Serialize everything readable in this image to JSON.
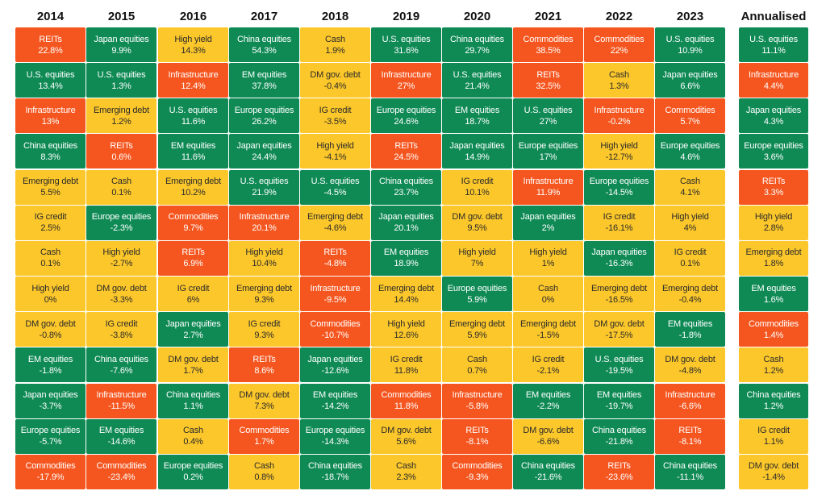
{
  "colors": {
    "green": "#0f8a55",
    "yellow": "#fcc72a",
    "red": "#f5561f"
  },
  "chart_data": {
    "type": "table",
    "title": "",
    "columns": [
      "2014",
      "2015",
      "2016",
      "2017",
      "2018",
      "2019",
      "2020",
      "2021",
      "2022",
      "2023",
      "Annualised"
    ],
    "cells": [
      [
        {
          "name": "REITs",
          "value": "22.8%",
          "color": "red"
        },
        {
          "name": "U.S. equities",
          "value": "13.4%",
          "color": "green"
        },
        {
          "name": "Infrastructure",
          "value": "13%",
          "color": "red"
        },
        {
          "name": "China equities",
          "value": "8.3%",
          "color": "green"
        },
        {
          "name": "Emerging debt",
          "value": "5.5%",
          "color": "yellow"
        },
        {
          "name": "IG credit",
          "value": "2.5%",
          "color": "yellow"
        },
        {
          "name": "Cash",
          "value": "0.1%",
          "color": "yellow"
        },
        {
          "name": "High yield",
          "value": "0%",
          "color": "yellow"
        },
        {
          "name": "DM gov. debt",
          "value": "-0.8%",
          "color": "yellow"
        },
        {
          "name": "EM equities",
          "value": "-1.8%",
          "color": "green"
        },
        {
          "name": "Japan equities",
          "value": "-3.7%",
          "color": "green"
        },
        {
          "name": "Europe equities",
          "value": "-5.7%",
          "color": "green"
        },
        {
          "name": "Commodities",
          "value": "-17.9%",
          "color": "red"
        }
      ],
      [
        {
          "name": "Japan equities",
          "value": "9.9%",
          "color": "green"
        },
        {
          "name": "U.S. equities",
          "value": "1.3%",
          "color": "green"
        },
        {
          "name": "Emerging debt",
          "value": "1.2%",
          "color": "yellow"
        },
        {
          "name": "REITs",
          "value": "0.6%",
          "color": "red"
        },
        {
          "name": "Cash",
          "value": "0.1%",
          "color": "yellow"
        },
        {
          "name": "Europe equities",
          "value": "-2.3%",
          "color": "green"
        },
        {
          "name": "High yield",
          "value": "-2.7%",
          "color": "yellow"
        },
        {
          "name": "DM gov. debt",
          "value": "-3.3%",
          "color": "yellow"
        },
        {
          "name": "IG credit",
          "value": "-3.8%",
          "color": "yellow"
        },
        {
          "name": "China equities",
          "value": "-7.6%",
          "color": "green"
        },
        {
          "name": "Infrastructure",
          "value": "-11.5%",
          "color": "red"
        },
        {
          "name": "EM equities",
          "value": "-14.6%",
          "color": "green"
        },
        {
          "name": "Commodities",
          "value": "-23.4%",
          "color": "red"
        }
      ],
      [
        {
          "name": "High yield",
          "value": "14.3%",
          "color": "yellow"
        },
        {
          "name": "Infrastructure",
          "value": "12.4%",
          "color": "red"
        },
        {
          "name": "U.S. equities",
          "value": "11.6%",
          "color": "green"
        },
        {
          "name": "EM equities",
          "value": "11.6%",
          "color": "green"
        },
        {
          "name": "Emerging debt",
          "value": "10.2%",
          "color": "yellow"
        },
        {
          "name": "Commodities",
          "value": "9.7%",
          "color": "red"
        },
        {
          "name": "REITs",
          "value": "6.9%",
          "color": "red"
        },
        {
          "name": "IG credit",
          "value": "6%",
          "color": "yellow"
        },
        {
          "name": "Japan equities",
          "value": "2.7%",
          "color": "green"
        },
        {
          "name": "DM gov. debt",
          "value": "1.7%",
          "color": "yellow"
        },
        {
          "name": "China equities",
          "value": "1.1%",
          "color": "green"
        },
        {
          "name": "Cash",
          "value": "0.4%",
          "color": "yellow"
        },
        {
          "name": "Europe equities",
          "value": "0.2%",
          "color": "green"
        }
      ],
      [
        {
          "name": "China equities",
          "value": "54.3%",
          "color": "green"
        },
        {
          "name": "EM equities",
          "value": "37.8%",
          "color": "green"
        },
        {
          "name": "Europe equities",
          "value": "26.2%",
          "color": "green"
        },
        {
          "name": "Japan equities",
          "value": "24.4%",
          "color": "green"
        },
        {
          "name": "U.S. equities",
          "value": "21.9%",
          "color": "green"
        },
        {
          "name": "Infrastructure",
          "value": "20.1%",
          "color": "red"
        },
        {
          "name": "High yield",
          "value": "10.4%",
          "color": "yellow"
        },
        {
          "name": "Emerging debt",
          "value": "9.3%",
          "color": "yellow"
        },
        {
          "name": "IG credit",
          "value": "9.3%",
          "color": "yellow"
        },
        {
          "name": "REITs",
          "value": "8.6%",
          "color": "red"
        },
        {
          "name": "DM gov. debt",
          "value": "7.3%",
          "color": "yellow"
        },
        {
          "name": "Commodities",
          "value": "1.7%",
          "color": "red"
        },
        {
          "name": "Cash",
          "value": "0.8%",
          "color": "yellow"
        }
      ],
      [
        {
          "name": "Cash",
          "value": "1.9%",
          "color": "yellow"
        },
        {
          "name": "DM gov. debt",
          "value": "-0.4%",
          "color": "yellow"
        },
        {
          "name": "IG credit",
          "value": "-3.5%",
          "color": "yellow"
        },
        {
          "name": "High yield",
          "value": "-4.1%",
          "color": "yellow"
        },
        {
          "name": "U.S. equities",
          "value": "-4.5%",
          "color": "green"
        },
        {
          "name": "Emerging debt",
          "value": "-4.6%",
          "color": "yellow"
        },
        {
          "name": "REITs",
          "value": "-4.8%",
          "color": "red"
        },
        {
          "name": "Infrastructure",
          "value": "-9.5%",
          "color": "red"
        },
        {
          "name": "Commodities",
          "value": "-10.7%",
          "color": "red"
        },
        {
          "name": "Japan equities",
          "value": "-12.6%",
          "color": "green"
        },
        {
          "name": "EM equities",
          "value": "-14.2%",
          "color": "green"
        },
        {
          "name": "Europe equities",
          "value": "-14.3%",
          "color": "green"
        },
        {
          "name": "China equities",
          "value": "-18.7%",
          "color": "green"
        }
      ],
      [
        {
          "name": "U.S. equities",
          "value": "31.6%",
          "color": "green"
        },
        {
          "name": "Infrastructure",
          "value": "27%",
          "color": "red"
        },
        {
          "name": "Europe equities",
          "value": "24.6%",
          "color": "green"
        },
        {
          "name": "REITs",
          "value": "24.5%",
          "color": "red"
        },
        {
          "name": "China equities",
          "value": "23.7%",
          "color": "green"
        },
        {
          "name": "Japan equities",
          "value": "20.1%",
          "color": "green"
        },
        {
          "name": "EM equities",
          "value": "18.9%",
          "color": "green"
        },
        {
          "name": "Emerging debt",
          "value": "14.4%",
          "color": "yellow"
        },
        {
          "name": "High yield",
          "value": "12.6%",
          "color": "yellow"
        },
        {
          "name": "IG credit",
          "value": "11.8%",
          "color": "yellow"
        },
        {
          "name": "Commodities",
          "value": "11.8%",
          "color": "red"
        },
        {
          "name": "DM gov. debt",
          "value": "5.6%",
          "color": "yellow"
        },
        {
          "name": "Cash",
          "value": "2.3%",
          "color": "yellow"
        }
      ],
      [
        {
          "name": "China equities",
          "value": "29.7%",
          "color": "green"
        },
        {
          "name": "U.S. equities",
          "value": "21.4%",
          "color": "green"
        },
        {
          "name": "EM equities",
          "value": "18.7%",
          "color": "green"
        },
        {
          "name": "Japan equities",
          "value": "14.9%",
          "color": "green"
        },
        {
          "name": "IG credit",
          "value": "10.1%",
          "color": "yellow"
        },
        {
          "name": "DM gov. debt",
          "value": "9.5%",
          "color": "yellow"
        },
        {
          "name": "High yield",
          "value": "7%",
          "color": "yellow"
        },
        {
          "name": "Europe equities",
          "value": "5.9%",
          "color": "green"
        },
        {
          "name": "Emerging debt",
          "value": "5.9%",
          "color": "yellow"
        },
        {
          "name": "Cash",
          "value": "0.7%",
          "color": "yellow"
        },
        {
          "name": "Infrastructure",
          "value": "-5.8%",
          "color": "red"
        },
        {
          "name": "REITs",
          "value": "-8.1%",
          "color": "red"
        },
        {
          "name": "Commodities",
          "value": "-9.3%",
          "color": "red"
        }
      ],
      [
        {
          "name": "Commodities",
          "value": "38.5%",
          "color": "red"
        },
        {
          "name": "REITs",
          "value": "32.5%",
          "color": "red"
        },
        {
          "name": "U.S. equities",
          "value": "27%",
          "color": "green"
        },
        {
          "name": "Europe equities",
          "value": "17%",
          "color": "green"
        },
        {
          "name": "Infrastructure",
          "value": "11.9%",
          "color": "red"
        },
        {
          "name": "Japan equities",
          "value": "2%",
          "color": "green"
        },
        {
          "name": "High yield",
          "value": "1%",
          "color": "yellow"
        },
        {
          "name": "Cash",
          "value": "0%",
          "color": "yellow"
        },
        {
          "name": "Emerging debt",
          "value": "-1.5%",
          "color": "yellow"
        },
        {
          "name": "IG credit",
          "value": "-2.1%",
          "color": "yellow"
        },
        {
          "name": "EM equities",
          "value": "-2.2%",
          "color": "green"
        },
        {
          "name": "DM gov. debt",
          "value": "-6.6%",
          "color": "yellow"
        },
        {
          "name": "China equities",
          "value": "-21.6%",
          "color": "green"
        }
      ],
      [
        {
          "name": "Commodities",
          "value": "22%",
          "color": "red"
        },
        {
          "name": "Cash",
          "value": "1.3%",
          "color": "yellow"
        },
        {
          "name": "Infrastructure",
          "value": "-0.2%",
          "color": "red"
        },
        {
          "name": "High yield",
          "value": "-12.7%",
          "color": "yellow"
        },
        {
          "name": "Europe equities",
          "value": "-14.5%",
          "color": "green"
        },
        {
          "name": "IG credit",
          "value": "-16.1%",
          "color": "yellow"
        },
        {
          "name": "Japan equities",
          "value": "-16.3%",
          "color": "green"
        },
        {
          "name": "Emerging debt",
          "value": "-16.5%",
          "color": "yellow"
        },
        {
          "name": "DM gov. debt",
          "value": "-17.5%",
          "color": "yellow"
        },
        {
          "name": "U.S. equities",
          "value": "-19.5%",
          "color": "green"
        },
        {
          "name": "EM equities",
          "value": "-19.7%",
          "color": "green"
        },
        {
          "name": "China equities",
          "value": "-21.8%",
          "color": "green"
        },
        {
          "name": "REITs",
          "value": "-23.6%",
          "color": "red"
        }
      ],
      [
        {
          "name": "U.S. equities",
          "value": "10.9%",
          "color": "green"
        },
        {
          "name": "Japan equities",
          "value": "6.6%",
          "color": "green"
        },
        {
          "name": "Commodities",
          "value": "5.7%",
          "color": "red"
        },
        {
          "name": "Europe equities",
          "value": "4.6%",
          "color": "green"
        },
        {
          "name": "Cash",
          "value": "4.1%",
          "color": "yellow"
        },
        {
          "name": "High yield",
          "value": "4%",
          "color": "yellow"
        },
        {
          "name": "IG credit",
          "value": "0.1%",
          "color": "yellow"
        },
        {
          "name": "Emerging debt",
          "value": "-0.4%",
          "color": "yellow"
        },
        {
          "name": "EM equities",
          "value": "-1.8%",
          "color": "green"
        },
        {
          "name": "DM gov. debt",
          "value": "-4.8%",
          "color": "yellow"
        },
        {
          "name": "Infrastructure",
          "value": "-6.6%",
          "color": "red"
        },
        {
          "name": "REITs",
          "value": "-8.1%",
          "color": "red"
        },
        {
          "name": "China equities",
          "value": "-11.1%",
          "color": "green"
        }
      ],
      [
        {
          "name": "U.S. equities",
          "value": "11.1%",
          "color": "green"
        },
        {
          "name": "Infrastructure",
          "value": "4.4%",
          "color": "red"
        },
        {
          "name": "Japan equities",
          "value": "4.3%",
          "color": "green"
        },
        {
          "name": "Europe equities",
          "value": "3.6%",
          "color": "green"
        },
        {
          "name": "REITs",
          "value": "3.3%",
          "color": "red"
        },
        {
          "name": "High yield",
          "value": "2.8%",
          "color": "yellow"
        },
        {
          "name": "Emerging debt",
          "value": "1.8%",
          "color": "yellow"
        },
        {
          "name": "EM equities",
          "value": "1.6%",
          "color": "green"
        },
        {
          "name": "Commodities",
          "value": "1.4%",
          "color": "red"
        },
        {
          "name": "Cash",
          "value": "1.2%",
          "color": "yellow"
        },
        {
          "name": "China equities",
          "value": "1.2%",
          "color": "green"
        },
        {
          "name": "IG credit",
          "value": "1.1%",
          "color": "yellow"
        },
        {
          "name": "DM gov. debt",
          "value": "-1.4%",
          "color": "yellow"
        }
      ]
    ]
  }
}
